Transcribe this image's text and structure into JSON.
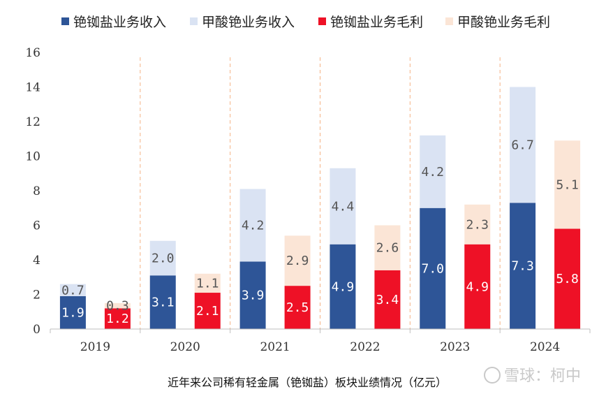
{
  "chart_data": {
    "type": "bar",
    "stacked": true,
    "categories": [
      "2019",
      "2020",
      "2021",
      "2022",
      "2023",
      "2024"
    ],
    "series": [
      {
        "name": "铯铷盐业务收入",
        "stack": "revenue",
        "color": "#2e5597",
        "label_color": "#ffffff",
        "values": [
          1.9,
          3.1,
          3.9,
          4.9,
          7.0,
          7.3
        ]
      },
      {
        "name": "甲酸铯业务收入",
        "stack": "revenue",
        "color": "#dae3f3",
        "label_color": "#555555",
        "values": [
          0.7,
          2.0,
          4.2,
          4.4,
          4.2,
          6.7
        ]
      },
      {
        "name": "铯铷盐业务毛利",
        "stack": "profit",
        "color": "#ee1126",
        "label_color": "#ffffff",
        "values": [
          1.2,
          2.1,
          2.5,
          3.4,
          4.9,
          5.8
        ]
      },
      {
        "name": "甲酸铯业务毛利",
        "stack": "profit",
        "color": "#fbe5d6",
        "label_color": "#555555",
        "values": [
          0.3,
          1.1,
          2.9,
          2.6,
          2.3,
          5.1
        ]
      }
    ],
    "ylim": [
      0,
      16
    ],
    "yticks": [
      0,
      2,
      4,
      6,
      8,
      10,
      12,
      14,
      16
    ],
    "legend_position": "top",
    "caption": "近年来公司稀有轻金属（铯铷盐）板块业绩情况（亿元）"
  },
  "watermark": "雪球：柯中"
}
